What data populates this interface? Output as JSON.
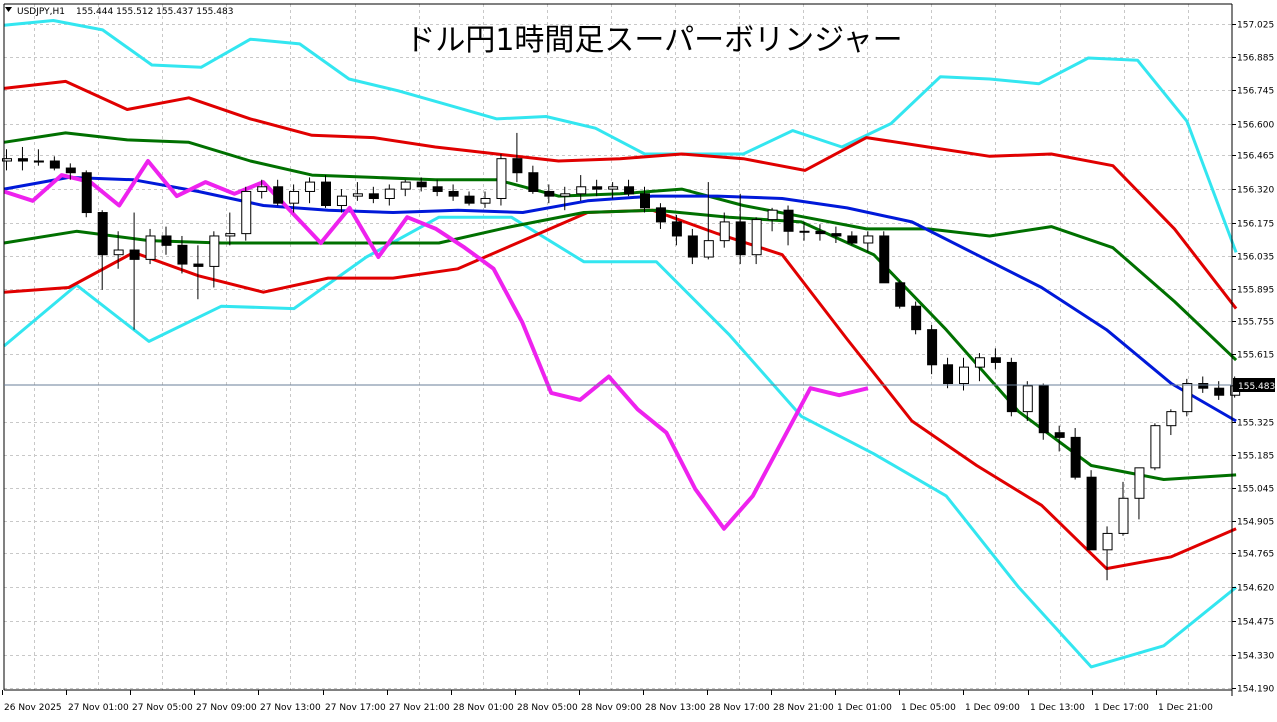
{
  "window": {
    "symbol": "USDJPY,H1",
    "ohlc": "155.444 155.512 155.437 155.483"
  },
  "title": "ドル円1時間足スーパーボリンジャー",
  "current_price": "155.483",
  "colors": {
    "background": "#ffffff",
    "grid": "#c8c8c8",
    "bull": "#ffffff",
    "bear": "#000000",
    "wick": "#000000",
    "sigma3": "#33e6f0",
    "sigma2": "#e00000",
    "sigma1": "#007000",
    "mid": "#0019d9",
    "lagging": "#ee22ee",
    "price_line": "#6a7f99"
  },
  "chart_data": {
    "type": "candlestick",
    "title": "ドル円1時間足スーパーボリンジャー",
    "instrument": "USDJPY",
    "timeframe": "H1",
    "grid": true,
    "ylim": [
      154.19,
      157.09
    ],
    "yticks": [
      "157.025",
      "156.885",
      "156.745",
      "156.600",
      "156.465",
      "156.320",
      "156.175",
      "156.035",
      "155.895",
      "155.755",
      "155.615",
      "155.325",
      "155.185",
      "155.045",
      "154.905",
      "154.765",
      "154.620",
      "154.475",
      "154.330",
      "154.190"
    ],
    "xticks": [
      "26 Nov 2025",
      "27 Nov 01:00",
      "27 Nov 05:00",
      "27 Nov 09:00",
      "27 Nov 13:00",
      "27 Nov 17:00",
      "27 Nov 21:00",
      "28 Nov 01:00",
      "28 Nov 05:00",
      "28 Nov 09:00",
      "28 Nov 13:00",
      "28 Nov 17:00",
      "28 Nov 21:00",
      "1 Dec 01:00",
      "1 Dec 05:00",
      "1 Dec 09:00",
      "1 Dec 13:00",
      "1 Dec 17:00",
      "1 Dec 21:00"
    ],
    "candles": [
      [
        156.44,
        156.49,
        156.4,
        156.45
      ],
      [
        156.45,
        156.5,
        156.4,
        156.44
      ],
      [
        156.44,
        156.49,
        156.42,
        156.44
      ],
      [
        156.44,
        156.46,
        156.4,
        156.41
      ],
      [
        156.41,
        156.43,
        156.36,
        156.39
      ],
      [
        156.39,
        156.4,
        156.2,
        156.22
      ],
      [
        156.22,
        156.23,
        155.89,
        156.04
      ],
      [
        156.04,
        156.14,
        155.98,
        156.06
      ],
      [
        156.06,
        156.22,
        155.72,
        156.02
      ],
      [
        156.02,
        156.15,
        156.0,
        156.12
      ],
      [
        156.12,
        156.16,
        156.04,
        156.08
      ],
      [
        156.08,
        156.12,
        155.96,
        156.0
      ],
      [
        156.0,
        156.08,
        155.85,
        155.99
      ],
      [
        155.99,
        156.14,
        155.9,
        156.12
      ],
      [
        156.12,
        156.22,
        156.08,
        156.13
      ],
      [
        156.13,
        156.33,
        156.1,
        156.31
      ],
      [
        156.31,
        156.36,
        156.28,
        156.33
      ],
      [
        156.33,
        156.36,
        156.25,
        156.26
      ],
      [
        156.26,
        156.34,
        156.22,
        156.31
      ],
      [
        156.31,
        156.37,
        156.26,
        156.35
      ],
      [
        156.35,
        156.38,
        156.24,
        156.25
      ],
      [
        156.25,
        156.32,
        156.22,
        156.29
      ],
      [
        156.29,
        156.35,
        156.27,
        156.3
      ],
      [
        156.3,
        156.33,
        156.26,
        156.28
      ],
      [
        156.28,
        156.34,
        156.25,
        156.32
      ],
      [
        156.32,
        156.36,
        156.29,
        156.35
      ],
      [
        156.35,
        156.37,
        156.31,
        156.33
      ],
      [
        156.33,
        156.36,
        156.29,
        156.31
      ],
      [
        156.31,
        156.34,
        156.27,
        156.29
      ],
      [
        156.29,
        156.31,
        156.25,
        156.26
      ],
      [
        156.26,
        156.31,
        156.24,
        156.28
      ],
      [
        156.28,
        156.47,
        156.25,
        156.45
      ],
      [
        156.45,
        156.56,
        156.35,
        156.39
      ],
      [
        156.39,
        156.42,
        156.3,
        156.31
      ],
      [
        156.31,
        156.34,
        156.26,
        156.29
      ],
      [
        156.29,
        156.33,
        156.23,
        156.3
      ],
      [
        156.3,
        156.38,
        156.27,
        156.33
      ],
      [
        156.33,
        156.36,
        156.29,
        156.32
      ],
      [
        156.32,
        156.35,
        156.28,
        156.33
      ],
      [
        156.33,
        156.36,
        156.29,
        156.3
      ],
      [
        156.3,
        156.33,
        156.22,
        156.24
      ],
      [
        156.24,
        156.26,
        156.15,
        156.18
      ],
      [
        156.18,
        156.21,
        156.08,
        156.12
      ],
      [
        156.12,
        156.15,
        156.0,
        156.03
      ],
      [
        156.03,
        156.35,
        156.02,
        156.1
      ],
      [
        156.1,
        156.22,
        156.07,
        156.18
      ],
      [
        156.18,
        156.3,
        156.0,
        156.04
      ],
      [
        156.04,
        156.2,
        156.0,
        156.19
      ],
      [
        156.19,
        156.24,
        156.14,
        156.23
      ],
      [
        156.23,
        156.25,
        156.08,
        156.14
      ],
      [
        156.14,
        156.18,
        156.1,
        156.14
      ],
      [
        156.14,
        156.17,
        156.1,
        156.13
      ],
      [
        156.13,
        156.16,
        156.09,
        156.12
      ],
      [
        156.12,
        156.14,
        156.08,
        156.09
      ],
      [
        156.09,
        156.14,
        156.05,
        156.12
      ],
      [
        156.12,
        156.14,
        155.92,
        155.92
      ],
      [
        155.92,
        155.93,
        155.81,
        155.82
      ],
      [
        155.82,
        155.84,
        155.7,
        155.72
      ],
      [
        155.72,
        155.74,
        155.53,
        155.57
      ],
      [
        155.57,
        155.6,
        155.47,
        155.49
      ],
      [
        155.49,
        155.6,
        155.46,
        155.56
      ],
      [
        155.56,
        155.62,
        155.5,
        155.6
      ],
      [
        155.6,
        155.64,
        155.55,
        155.58
      ],
      [
        155.58,
        155.6,
        155.35,
        155.37
      ],
      [
        155.37,
        155.5,
        155.33,
        155.48
      ],
      [
        155.48,
        155.49,
        155.25,
        155.28
      ],
      [
        155.28,
        155.31,
        155.2,
        155.26
      ],
      [
        155.26,
        155.3,
        155.08,
        155.09
      ],
      [
        155.09,
        155.12,
        154.78,
        154.78
      ],
      [
        154.78,
        154.88,
        154.65,
        154.85
      ],
      [
        154.85,
        155.07,
        154.84,
        155.0
      ],
      [
        155.0,
        155.13,
        154.91,
        155.13
      ],
      [
        155.13,
        155.32,
        155.12,
        155.31
      ],
      [
        155.31,
        155.38,
        155.27,
        155.37
      ],
      [
        155.37,
        155.51,
        155.35,
        155.49
      ],
      [
        155.49,
        155.52,
        155.45,
        155.47
      ],
      [
        155.47,
        155.5,
        155.42,
        155.44
      ],
      [
        155.44,
        155.52,
        155.43,
        155.48
      ]
    ],
    "bands": {
      "sigma3_upper": [
        157.02,
        157.04,
        157.0,
        156.85,
        156.84,
        156.96,
        156.94,
        156.79,
        156.74,
        156.68,
        156.62,
        156.63,
        156.58,
        156.47,
        156.47,
        156.47,
        156.57,
        156.5,
        156.6,
        156.8,
        156.79,
        156.77,
        156.88,
        156.87,
        156.61,
        156.05
      ],
      "sigma2_upper": [
        156.75,
        156.78,
        156.66,
        156.71,
        156.62,
        156.55,
        156.54,
        156.5,
        156.47,
        156.44,
        156.45,
        156.47,
        156.45,
        156.4,
        156.54,
        156.5,
        156.46,
        156.47,
        156.42,
        156.15,
        155.81
      ],
      "sigma1_upper": [
        156.52,
        156.56,
        156.53,
        156.52,
        156.44,
        156.38,
        156.37,
        156.36,
        156.36,
        156.29,
        156.3,
        156.32,
        156.25,
        156.2,
        156.15,
        156.15,
        156.12,
        156.16,
        156.07,
        155.84,
        155.59
      ],
      "mid": [
        156.32,
        156.37,
        156.36,
        156.31,
        156.25,
        156.23,
        156.22,
        156.23,
        156.22,
        156.27,
        156.29,
        156.29,
        156.28,
        156.24,
        156.18,
        156.04,
        155.9,
        155.72,
        155.49,
        155.33
      ],
      "sigma1_lower": [
        156.09,
        156.14,
        156.1,
        156.09,
        156.09,
        156.09,
        156.09,
        156.16,
        156.22,
        156.23,
        156.2,
        156.18,
        156.04,
        155.72,
        155.37,
        155.14,
        155.08,
        155.1
      ],
      "sigma2_lower": [
        155.88,
        155.9,
        156.05,
        155.95,
        155.88,
        155.94,
        155.94,
        155.98,
        156.1,
        156.22,
        156.23,
        156.13,
        156.04,
        155.68,
        155.33,
        155.14,
        154.97,
        154.7,
        154.75,
        154.87
      ],
      "sigma3_lower": [
        155.65,
        155.91,
        155.67,
        155.82,
        155.81,
        156.03,
        156.2,
        156.2,
        156.01,
        156.01,
        155.7,
        155.35,
        155.19,
        155.01,
        154.62,
        154.28,
        154.37,
        154.62
      ]
    },
    "lagging_span": [
      156.31,
      156.27,
      156.38,
      156.35,
      156.25,
      156.44,
      156.29,
      156.35,
      156.3,
      156.35,
      156.22,
      156.09,
      156.24,
      156.03,
      156.2,
      156.15,
      156.07,
      155.98,
      155.75,
      155.45,
      155.42,
      155.52,
      155.38,
      155.28,
      155.04,
      154.87,
      155.01,
      155.24,
      155.47,
      155.44,
      155.47
    ]
  }
}
